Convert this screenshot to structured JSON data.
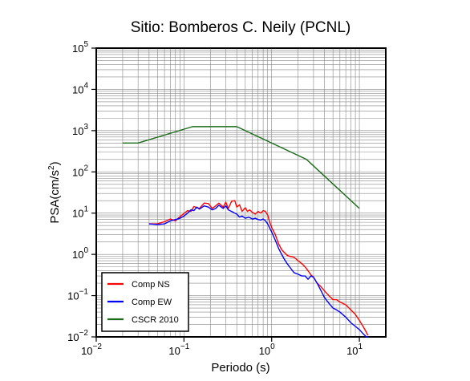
{
  "chart_data": {
    "type": "line",
    "title": "Sitio: Bomberos C. Neily (PCNL)",
    "xlabel": "Periodo (s)",
    "ylabel_parts": [
      "PSA(cm/s",
      "2",
      ")"
    ],
    "xscale": "log",
    "yscale": "log",
    "xlim": [
      0.01,
      20
    ],
    "ylim": [
      0.01,
      100000
    ],
    "grid": true,
    "legend_position": "bottom-left",
    "x_ticks": [
      {
        "value": 0.01,
        "base": "10",
        "exp": "−2"
      },
      {
        "value": 0.1,
        "base": "10",
        "exp": "−1"
      },
      {
        "value": 1,
        "base": "10",
        "exp": "0"
      },
      {
        "value": 10,
        "base": "10",
        "exp": "1"
      }
    ],
    "y_ticks": [
      {
        "value": 0.01,
        "base": "10",
        "exp": "−2"
      },
      {
        "value": 0.1,
        "base": "10",
        "exp": "−1"
      },
      {
        "value": 1,
        "base": "10",
        "exp": "0"
      },
      {
        "value": 10,
        "base": "10",
        "exp": "1"
      },
      {
        "value": 100,
        "base": "10",
        "exp": "2"
      },
      {
        "value": 1000,
        "base": "10",
        "exp": "3"
      },
      {
        "value": 10000,
        "base": "10",
        "exp": "4"
      },
      {
        "value": 100000,
        "base": "10",
        "exp": "5"
      }
    ],
    "series": [
      {
        "name": "Comp NS",
        "color": "#ff0000",
        "x": [
          0.04,
          0.05,
          0.06,
          0.07,
          0.08,
          0.09,
          0.1,
          0.11,
          0.12,
          0.13,
          0.14,
          0.15,
          0.17,
          0.19,
          0.21,
          0.23,
          0.25,
          0.28,
          0.3,
          0.32,
          0.35,
          0.38,
          0.4,
          0.43,
          0.46,
          0.5,
          0.53,
          0.56,
          0.6,
          0.65,
          0.7,
          0.75,
          0.8,
          0.85,
          0.9,
          0.95,
          1.0,
          1.1,
          1.2,
          1.3,
          1.4,
          1.5,
          1.6,
          1.7,
          1.8,
          2.0,
          2.2,
          2.4,
          2.6,
          2.8,
          3.0,
          3.3,
          3.6,
          4.0,
          4.5,
          5.0,
          5.5,
          6.0,
          7.0,
          8.0,
          9.0,
          10.0,
          11.0,
          12.0,
          12.5
        ],
        "y": [
          5.5,
          5.5,
          6.2,
          7.2,
          6.5,
          8.2,
          9.8,
          11.5,
          11.0,
          14.5,
          13.5,
          13.0,
          17.5,
          17.0,
          13.0,
          15.0,
          17.5,
          14.0,
          18.5,
          13.0,
          19.5,
          20.0,
          14.0,
          16.0,
          11.0,
          13.5,
          11.0,
          12.0,
          10.5,
          9.5,
          11.0,
          10.0,
          11.5,
          11.0,
          9.0,
          6.0,
          4.5,
          3.0,
          1.8,
          1.3,
          1.1,
          0.95,
          0.9,
          0.88,
          0.85,
          0.7,
          0.6,
          0.5,
          0.4,
          0.32,
          0.28,
          0.2,
          0.17,
          0.13,
          0.1,
          0.08,
          0.08,
          0.07,
          0.06,
          0.045,
          0.035,
          0.025,
          0.018,
          0.013,
          0.011
        ]
      },
      {
        "name": "Comp EW",
        "color": "#0000ff",
        "x": [
          0.04,
          0.05,
          0.06,
          0.07,
          0.08,
          0.09,
          0.1,
          0.11,
          0.12,
          0.13,
          0.14,
          0.15,
          0.17,
          0.19,
          0.21,
          0.23,
          0.25,
          0.28,
          0.3,
          0.32,
          0.35,
          0.38,
          0.4,
          0.43,
          0.46,
          0.5,
          0.55,
          0.6,
          0.65,
          0.7,
          0.75,
          0.8,
          0.85,
          0.9,
          1.0,
          1.1,
          1.2,
          1.3,
          1.4,
          1.5,
          1.6,
          1.7,
          1.8,
          2.0,
          2.2,
          2.4,
          2.6,
          2.8,
          3.0,
          3.3,
          3.6,
          4.0,
          4.5,
          5.0,
          5.5,
          6.0,
          7.0,
          8.0,
          9.0,
          10.0,
          11.0,
          12.0,
          12.5
        ],
        "y": [
          5.5,
          5.3,
          5.5,
          6.5,
          7.0,
          7.5,
          8.5,
          10.0,
          12.0,
          11.5,
          14.0,
          12.5,
          15.0,
          14.0,
          12.0,
          13.0,
          15.5,
          13.0,
          15.0,
          12.0,
          11.0,
          10.0,
          9.5,
          8.0,
          8.5,
          7.5,
          8.0,
          7.2,
          7.5,
          7.0,
          6.8,
          7.2,
          6.5,
          5.5,
          3.5,
          2.2,
          1.4,
          1.0,
          0.75,
          0.6,
          0.5,
          0.42,
          0.36,
          0.33,
          0.3,
          0.3,
          0.25,
          0.3,
          0.28,
          0.2,
          0.14,
          0.09,
          0.065,
          0.05,
          0.045,
          0.04,
          0.03,
          0.022,
          0.018,
          0.015,
          0.012,
          0.01,
          0.01
        ]
      },
      {
        "name": "CSCR 2010",
        "color": "#1a6b1a",
        "x": [
          0.02,
          0.03,
          0.125,
          0.4,
          2.5,
          10.0
        ],
        "y": [
          500,
          500,
          1250,
          1250,
          200,
          13
        ]
      }
    ]
  }
}
